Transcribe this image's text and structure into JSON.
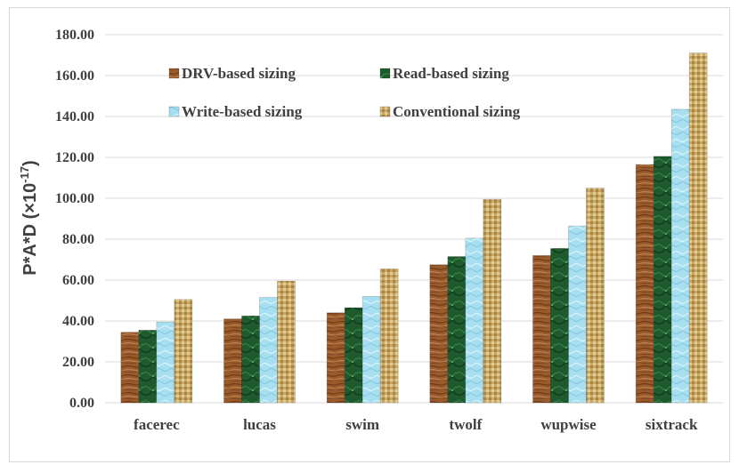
{
  "chart_data": {
    "type": "bar",
    "categories": [
      "facerec",
      "lucas",
      "swim",
      "twolf",
      "wupwise",
      "sixtrack"
    ],
    "series": [
      {
        "name": "DRV-based sizing",
        "values": [
          34.5,
          41.0,
          44.0,
          67.5,
          72.0,
          116.5
        ],
        "color": "#9a5a2c"
      },
      {
        "name": "Read-based sizing",
        "values": [
          35.5,
          42.5,
          46.5,
          71.5,
          75.5,
          120.5
        ],
        "color": "#1f5a2e"
      },
      {
        "name": "Write-based sizing",
        "values": [
          39.5,
          51.5,
          52.0,
          80.5,
          86.5,
          143.5
        ],
        "color": "#a8dff0"
      },
      {
        "name": "Conventional sizing",
        "values": [
          50.5,
          59.5,
          65.5,
          99.5,
          105.0,
          171.0
        ],
        "color": "#c9a866"
      }
    ],
    "ylabel_main": "P*A*D (×10",
    "ylabel_exp": "-17",
    "ylabel_end": ")",
    "ylim": [
      0,
      180
    ],
    "yticks": [
      "0.00",
      "20.00",
      "40.00",
      "60.00",
      "80.00",
      "100.00",
      "120.00",
      "140.00",
      "160.00",
      "180.00"
    ],
    "grid": true,
    "legend_placement": "top-left"
  }
}
